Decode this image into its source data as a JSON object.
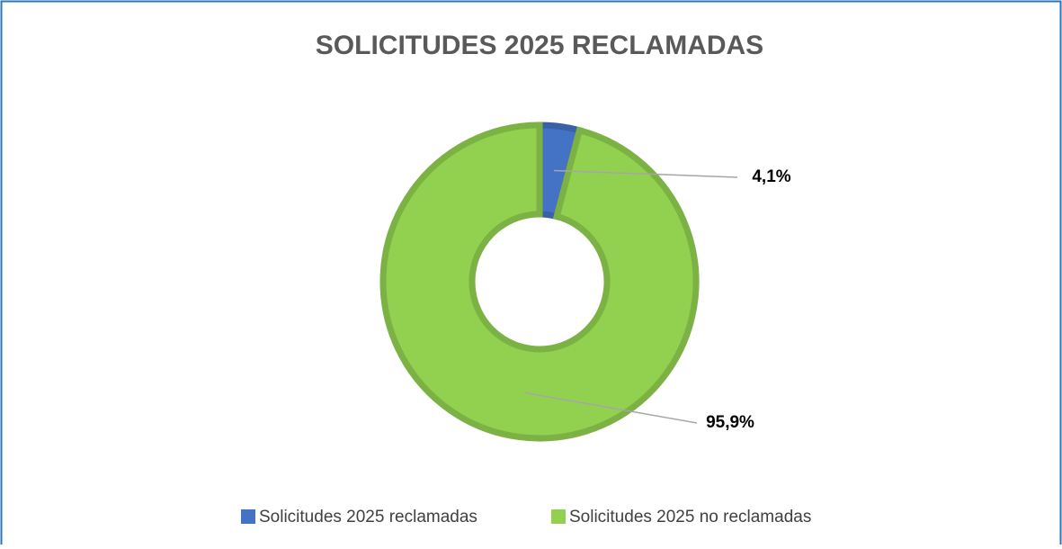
{
  "chart_data": {
    "type": "donut",
    "title": "SOLICITUDES 2025 RECLAMADAS",
    "categories": [
      "Solicitudes 2025 reclamadas",
      "Solicitudes 2025 no reclamadas"
    ],
    "values": [
      4.1,
      95.9
    ],
    "value_labels": [
      "4,1%",
      "95,9%"
    ],
    "colors": [
      "#4472c4",
      "#92d050"
    ],
    "legend": "bottom"
  }
}
